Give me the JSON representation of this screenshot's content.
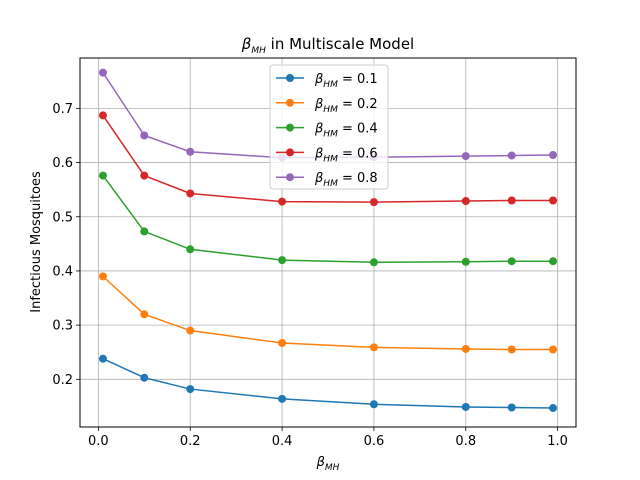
{
  "chart_data": {
    "type": "line",
    "title_symbol": "β",
    "title_subscript": "MH",
    "title_rest": " in Multiscale Model",
    "xlabel_symbol": "β",
    "xlabel_subscript": "MH",
    "ylabel": "Infectious Mosquitoes",
    "x": [
      0.01,
      0.1,
      0.2,
      0.4,
      0.6,
      0.8,
      0.9,
      0.99
    ],
    "xlim": [
      -0.04,
      1.04
    ],
    "ylim": [
      0.112,
      0.793
    ],
    "xticks": [
      0.0,
      0.2,
      0.4,
      0.6,
      0.8,
      1.0
    ],
    "xtick_labels": [
      "0.0",
      "0.2",
      "0.4",
      "0.6",
      "0.8",
      "1.0"
    ],
    "yticks": [
      0.2,
      0.3,
      0.4,
      0.5,
      0.6,
      0.7
    ],
    "ytick_labels": [
      "0.2",
      "0.3",
      "0.4",
      "0.5",
      "0.6",
      "0.7"
    ],
    "grid": true,
    "legend_position": "top-center",
    "series": [
      {
        "symbol": "β",
        "subscript": "HM",
        "value_label": " = 0.1",
        "color": "#1f77b4",
        "values": [
          0.238,
          0.203,
          0.182,
          0.164,
          0.154,
          0.149,
          0.148,
          0.147
        ]
      },
      {
        "symbol": "β",
        "subscript": "HM",
        "value_label": " = 0.2",
        "color": "#ff7f0e",
        "values": [
          0.39,
          0.32,
          0.29,
          0.267,
          0.259,
          0.256,
          0.255,
          0.255
        ]
      },
      {
        "symbol": "β",
        "subscript": "HM",
        "value_label": " = 0.4",
        "color": "#2ca02c",
        "values": [
          0.576,
          0.473,
          0.44,
          0.42,
          0.416,
          0.417,
          0.418,
          0.418
        ]
      },
      {
        "symbol": "β",
        "subscript": "HM",
        "value_label": " = 0.6",
        "color": "#d62728",
        "values": [
          0.687,
          0.576,
          0.543,
          0.528,
          0.527,
          0.529,
          0.53,
          0.53
        ]
      },
      {
        "symbol": "β",
        "subscript": "HM",
        "value_label": " = 0.8",
        "color": "#9467bd",
        "values": [
          0.766,
          0.65,
          0.62,
          0.609,
          0.61,
          0.612,
          0.613,
          0.614
        ]
      }
    ]
  }
}
